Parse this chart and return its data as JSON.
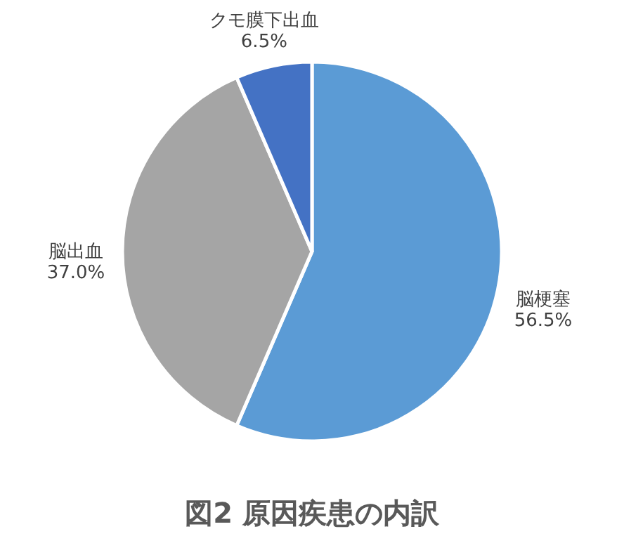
{
  "chart_data": {
    "type": "pie",
    "title": "図2  原因疾患の内訳",
    "categories": [
      "脳梗塞",
      "脳出血",
      "クモ膜下出血"
    ],
    "values": [
      56.5,
      37.0,
      6.5
    ],
    "colors": [
      "#5b9bd5",
      "#a5a5a5",
      "#4472c4"
    ],
    "value_labels": [
      "56.5%",
      "37.0%",
      "6.5%"
    ],
    "legend": false
  }
}
